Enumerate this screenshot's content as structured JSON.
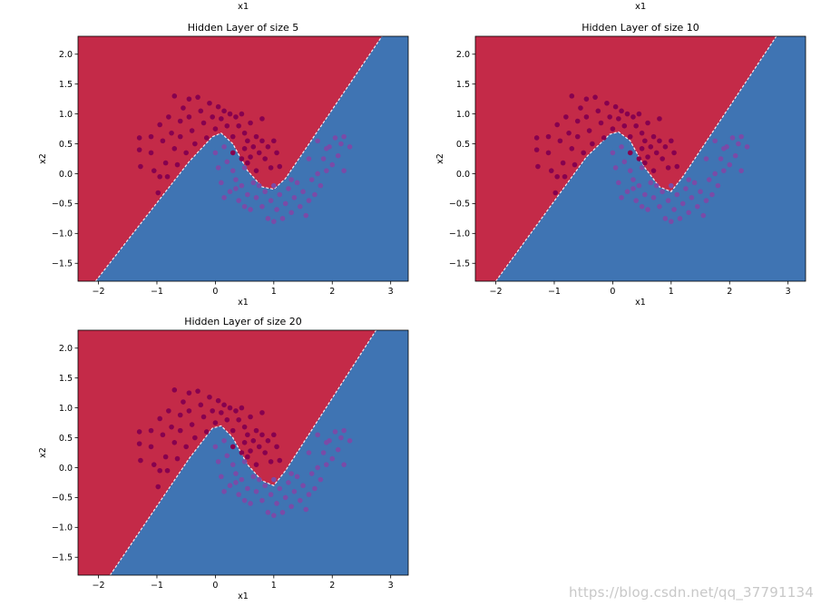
{
  "header_labels": [
    "x1",
    "x1"
  ],
  "watermark": "https://blog.csdn.net/qq_37791134",
  "colors": {
    "region_red": "#c42a48",
    "region_blue": "#3f74b3",
    "points_red": "#87004f",
    "points_purple": "#7a4ba7"
  },
  "chart_data": [
    {
      "type": "scatter",
      "title": "Hidden Layer of size 5",
      "xlabel": "x1",
      "ylabel": "x2",
      "xlim": [
        -2.35,
        3.3
      ],
      "ylim": [
        -1.8,
        2.3
      ],
      "xticks": [
        -2,
        -1,
        0,
        1,
        2,
        3
      ],
      "xtick_labels": [
        "−2",
        "−1",
        "0",
        "1",
        "2",
        "3"
      ],
      "yticks": [
        -1.5,
        -1.0,
        -0.5,
        0.0,
        0.5,
        1.0,
        1.5,
        2.0
      ],
      "ytick_labels": [
        "−1.5",
        "−1.0",
        "−0.5",
        "0.0",
        "0.5",
        "1.0",
        "1.5",
        "2.0"
      ],
      "decision_boundary": [
        [
          -2.05,
          -1.8
        ],
        [
          -0.45,
          0.2
        ],
        [
          -0.05,
          0.62
        ],
        [
          0.1,
          0.68
        ],
        [
          0.3,
          0.5
        ],
        [
          0.55,
          0.05
        ],
        [
          0.8,
          -0.22
        ],
        [
          1.0,
          -0.26
        ],
        [
          1.2,
          -0.08
        ],
        [
          2.85,
          2.3
        ]
      ]
    },
    {
      "type": "scatter",
      "title": "Hidden Layer of size 10",
      "xlabel": "x1",
      "ylabel": "x2",
      "xlim": [
        -2.35,
        3.3
      ],
      "ylim": [
        -1.8,
        2.3
      ],
      "xticks": [
        -2,
        -1,
        0,
        1,
        2,
        3
      ],
      "xtick_labels": [
        "−2",
        "−1",
        "0",
        "1",
        "2",
        "3"
      ],
      "yticks": [
        -1.5,
        -1.0,
        -0.5,
        0.0,
        0.5,
        1.0,
        1.5,
        2.0
      ],
      "ytick_labels": [
        "−1.5",
        "−1.0",
        "−0.5",
        "0.0",
        "0.5",
        "1.0",
        "1.5",
        "2.0"
      ],
      "decision_boundary": [
        [
          -2.0,
          -1.8
        ],
        [
          -0.45,
          0.28
        ],
        [
          -0.05,
          0.66
        ],
        [
          0.1,
          0.7
        ],
        [
          0.3,
          0.55
        ],
        [
          0.55,
          0.1
        ],
        [
          0.8,
          -0.22
        ],
        [
          1.0,
          -0.3
        ],
        [
          1.2,
          -0.05
        ],
        [
          2.8,
          2.3
        ]
      ]
    },
    {
      "type": "scatter",
      "title": "Hidden Layer of size 20",
      "xlabel": "x1",
      "ylabel": "x2",
      "xlim": [
        -2.35,
        3.3
      ],
      "ylim": [
        -1.8,
        2.3
      ],
      "xticks": [
        -2,
        -1,
        0,
        1,
        2,
        3
      ],
      "xtick_labels": [
        "−2",
        "−1",
        "0",
        "1",
        "2",
        "3"
      ],
      "yticks": [
        -1.5,
        -1.0,
        -0.5,
        0.0,
        0.5,
        1.0,
        1.5,
        2.0
      ],
      "ytick_labels": [
        "−1.5",
        "−1.0",
        "−0.5",
        "0.0",
        "0.5",
        "1.0",
        "1.5",
        "2.0"
      ],
      "decision_boundary": [
        [
          -1.8,
          -1.8
        ],
        [
          -0.45,
          0.15
        ],
        [
          -0.05,
          0.66
        ],
        [
          0.1,
          0.7
        ],
        [
          0.3,
          0.5
        ],
        [
          0.55,
          0.05
        ],
        [
          0.8,
          -0.22
        ],
        [
          1.0,
          -0.3
        ],
        [
          1.2,
          -0.05
        ],
        [
          2.75,
          2.3
        ]
      ]
    }
  ],
  "points": {
    "class0": [
      [
        -1.3,
        0.6
      ],
      [
        -1.3,
        0.4
      ],
      [
        -1.28,
        0.12
      ],
      [
        -1.1,
        0.62
      ],
      [
        -1.1,
        0.35
      ],
      [
        -1.05,
        0.05
      ],
      [
        -0.98,
        -0.32
      ],
      [
        -0.95,
        0.82
      ],
      [
        -0.9,
        0.55
      ],
      [
        -0.85,
        0.18
      ],
      [
        -0.82,
        -0.05
      ],
      [
        -0.8,
        0.95
      ],
      [
        -0.75,
        0.68
      ],
      [
        -0.7,
        0.42
      ],
      [
        -0.7,
        1.3
      ],
      [
        -0.65,
        0.15
      ],
      [
        -0.6,
        0.88
      ],
      [
        -0.6,
        0.62
      ],
      [
        -0.55,
        1.1
      ],
      [
        -0.5,
        0.35
      ],
      [
        -0.45,
        1.25
      ],
      [
        -0.45,
        0.95
      ],
      [
        -0.4,
        0.72
      ],
      [
        -0.35,
        0.5
      ],
      [
        -0.3,
        1.28
      ],
      [
        -0.25,
        1.05
      ],
      [
        -0.2,
        0.85
      ],
      [
        -0.15,
        0.6
      ],
      [
        -0.1,
        1.18
      ],
      [
        -0.05,
        0.95
      ],
      [
        0.0,
        0.75
      ],
      [
        0.05,
        1.12
      ],
      [
        0.1,
        0.92
      ],
      [
        0.15,
        1.05
      ],
      [
        0.2,
        0.8
      ],
      [
        0.25,
        1.0
      ],
      [
        0.3,
        0.62
      ],
      [
        0.35,
        0.95
      ],
      [
        0.4,
        0.8
      ],
      [
        0.45,
        1.0
      ],
      [
        0.5,
        0.68
      ],
      [
        0.55,
        0.55
      ],
      [
        0.6,
        0.85
      ],
      [
        0.65,
        0.45
      ],
      [
        0.7,
        0.62
      ],
      [
        0.75,
        0.35
      ],
      [
        0.8,
        0.55
      ],
      [
        0.85,
        0.25
      ],
      [
        0.9,
        0.45
      ],
      [
        0.95,
        0.1
      ],
      [
        1.0,
        0.55
      ],
      [
        1.05,
        0.35
      ],
      [
        1.1,
        0.12
      ],
      [
        0.8,
        0.92
      ],
      [
        0.7,
        0.05
      ],
      [
        0.6,
        0.28
      ],
      [
        0.55,
        0.18
      ],
      [
        0.5,
        0.42
      ],
      [
        0.45,
        0.25
      ],
      [
        0.3,
        0.35
      ],
      [
        -0.95,
        -0.05
      ]
    ],
    "class1": [
      [
        0.0,
        0.35
      ],
      [
        0.05,
        0.1
      ],
      [
        0.1,
        -0.15
      ],
      [
        0.15,
        0.45
      ],
      [
        0.2,
        0.2
      ],
      [
        0.25,
        -0.3
      ],
      [
        0.3,
        0.05
      ],
      [
        0.35,
        -0.1
      ],
      [
        0.4,
        -0.45
      ],
      [
        0.45,
        -0.2
      ],
      [
        0.5,
        0.1
      ],
      [
        0.55,
        -0.35
      ],
      [
        0.6,
        -0.6
      ],
      [
        0.65,
        -0.15
      ],
      [
        0.7,
        -0.4
      ],
      [
        0.75,
        -0.2
      ],
      [
        0.8,
        -0.55
      ],
      [
        0.85,
        -0.3
      ],
      [
        0.9,
        -0.75
      ],
      [
        0.95,
        -0.45
      ],
      [
        1.0,
        -0.2
      ],
      [
        1.05,
        -0.6
      ],
      [
        1.1,
        -0.35
      ],
      [
        1.15,
        -0.75
      ],
      [
        1.2,
        -0.5
      ],
      [
        1.25,
        -0.25
      ],
      [
        1.3,
        -0.65
      ],
      [
        1.35,
        -0.4
      ],
      [
        1.4,
        -0.15
      ],
      [
        1.45,
        -0.55
      ],
      [
        1.5,
        -0.3
      ],
      [
        1.55,
        -0.7
      ],
      [
        1.6,
        -0.45
      ],
      [
        1.65,
        -0.1
      ],
      [
        1.7,
        -0.35
      ],
      [
        1.75,
        0.0
      ],
      [
        1.8,
        -0.2
      ],
      [
        1.85,
        0.25
      ],
      [
        1.9,
        0.05
      ],
      [
        1.95,
        0.45
      ],
      [
        2.0,
        0.15
      ],
      [
        2.05,
        0.6
      ],
      [
        2.1,
        0.3
      ],
      [
        2.15,
        0.5
      ],
      [
        2.2,
        0.05
      ],
      [
        2.2,
        0.62
      ],
      [
        1.9,
        0.42
      ],
      [
        1.75,
        0.55
      ],
      [
        1.6,
        0.25
      ],
      [
        2.3,
        0.45
      ],
      [
        0.35,
        -0.25
      ],
      [
        0.15,
        -0.4
      ],
      [
        0.5,
        -0.55
      ],
      [
        1.0,
        -0.8
      ],
      [
        1.3,
        -0.1
      ]
    ]
  }
}
